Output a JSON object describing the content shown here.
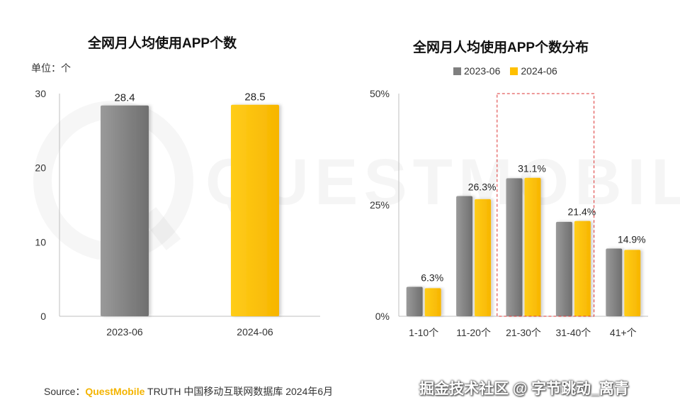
{
  "watermark": {
    "text": "QUESTMOBILE"
  },
  "colors": {
    "gray": "#7f7f7f",
    "yellow": "#ffc000",
    "highlight_box": "#d33"
  },
  "left_chart": {
    "title": "全网月人均使用APP个数",
    "unit": "单位：个"
  },
  "right_chart": {
    "title": "全网月人均使用APP个数分布"
  },
  "footer": {
    "source_prefix": "Source：",
    "source_brand": "QuestMobile",
    "source_rest": " TRUTH 中国移动互联网数据库 2024年6月",
    "credit": "掘金技术社区 @ 字节跳动_离青"
  },
  "chart_data": [
    {
      "type": "bar",
      "title": "全网月人均使用APP个数",
      "ylabel": "单位：个",
      "categories": [
        "2023-06",
        "2024-06"
      ],
      "values": [
        28.4,
        28.5
      ],
      "value_labels": [
        "28.4",
        "28.5"
      ],
      "colors": [
        "#7f7f7f",
        "#ffc000"
      ],
      "ylim": [
        0,
        30
      ],
      "yticks": [
        "0",
        "10",
        "20",
        "30"
      ],
      "ytick_values": [
        0,
        10,
        20,
        30
      ],
      "grid": false
    },
    {
      "type": "bar",
      "title": "全网月人均使用APP个数分布",
      "categories": [
        "1-10个",
        "11-20个",
        "21-30个",
        "31-40个",
        "41+个"
      ],
      "series": [
        {
          "name": "2023-06",
          "color": "#7f7f7f",
          "values": [
            6.6,
            27.0,
            31.0,
            21.2,
            15.2
          ]
        },
        {
          "name": "2024-06",
          "color": "#ffc000",
          "values": [
            6.3,
            26.3,
            31.1,
            21.4,
            14.9
          ]
        }
      ],
      "value_labels": [
        "6.3%",
        "26.3%",
        "31.1%",
        "21.4%",
        "14.9%"
      ],
      "ylim": [
        0,
        50
      ],
      "yticks": [
        "0%",
        "25%",
        "50%"
      ],
      "ytick_values": [
        0,
        25,
        50
      ],
      "legend": "top",
      "highlight": [
        "21-30个",
        "31-40个"
      ],
      "grid": false
    }
  ]
}
